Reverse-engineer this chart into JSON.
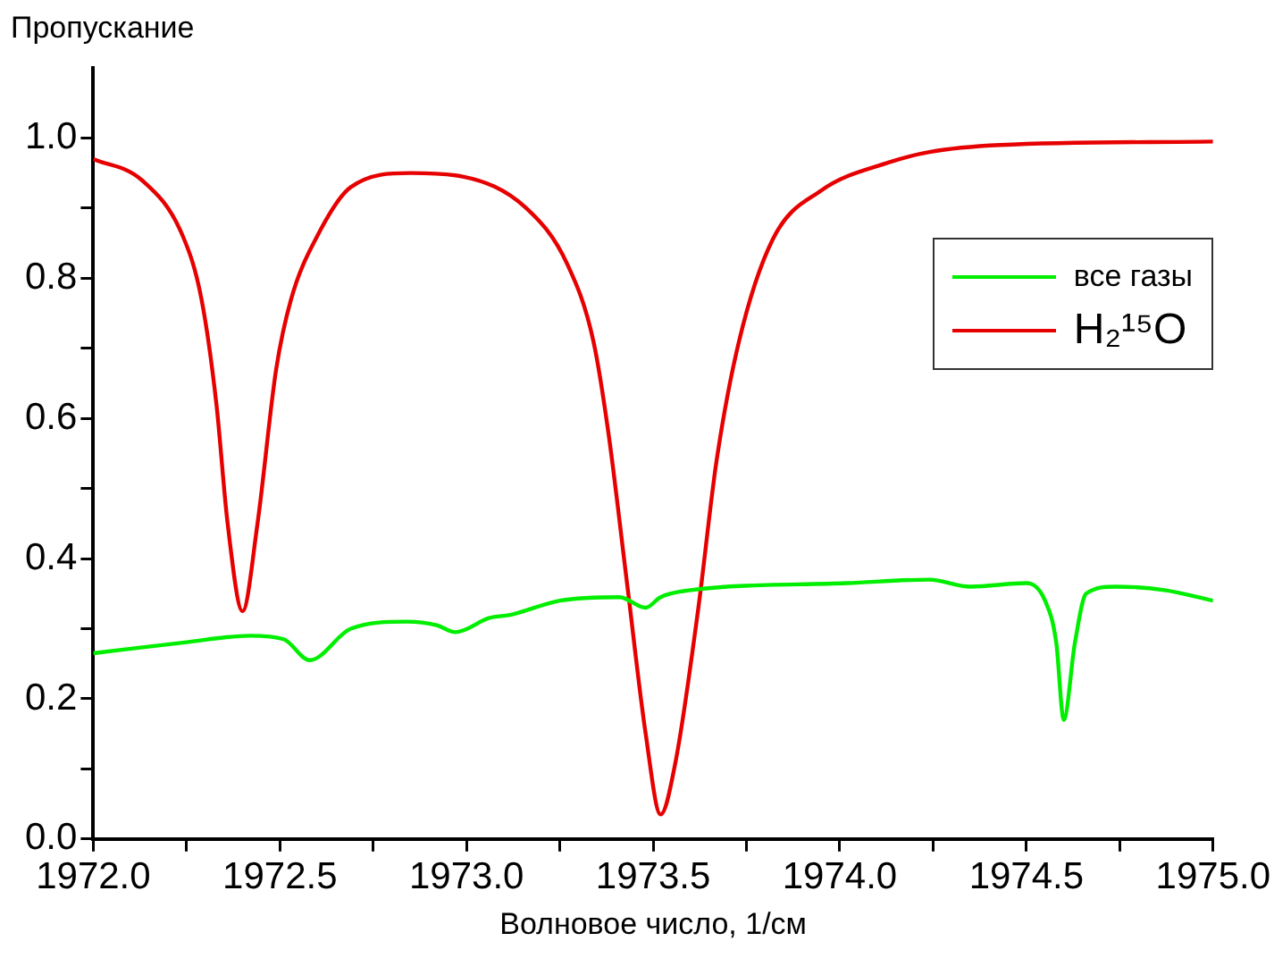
{
  "chart_data": {
    "type": "line",
    "xlabel": "Волновое число, 1/см",
    "ylabel": "Пропускание",
    "legend": "top right",
    "grid": false,
    "marker": "none",
    "line_style": "solid",
    "xlim": [
      1972.0,
      1975.0
    ],
    "ylim": [
      0,
      1.1
    ],
    "xticks": [
      {
        "value": 1972.0,
        "label": "1972.0"
      },
      {
        "value": 1972.25,
        "label": null
      },
      {
        "value": 1972.5,
        "label": "1972.5"
      },
      {
        "value": 1972.75,
        "label": null
      },
      {
        "value": 1973.0,
        "label": "1973.0"
      },
      {
        "value": 1973.25,
        "label": null
      },
      {
        "value": 1973.5,
        "label": "1973.5"
      },
      {
        "value": 1973.75,
        "label": null
      },
      {
        "value": 1974.0,
        "label": "1974.0"
      },
      {
        "value": 1974.25,
        "label": null
      },
      {
        "value": 1974.5,
        "label": "1974.5"
      },
      {
        "value": 1974.75,
        "label": null
      },
      {
        "value": 1975.0,
        "label": "1975.0"
      }
    ],
    "yticks": [
      {
        "value": 0,
        "label": "0.0"
      },
      {
        "value": 0.1,
        "label": null
      },
      {
        "value": 0.2,
        "label": "0.2"
      },
      {
        "value": 0.3,
        "label": null
      },
      {
        "value": 0.4,
        "label": "0.4"
      },
      {
        "value": 0.5,
        "label": null
      },
      {
        "value": 0.6,
        "label": "0.6"
      },
      {
        "value": 0.7,
        "label": null
      },
      {
        "value": 0.8,
        "label": "0.8"
      },
      {
        "value": 0.9,
        "label": null
      },
      {
        "value": 1.0,
        "label": "1.0"
      }
    ],
    "series": [
      {
        "name": "все газы",
        "color": "#00ee00",
        "x": [
          1972.0,
          1972.24,
          1972.42,
          1972.51,
          1972.58,
          1972.69,
          1972.84,
          1972.92,
          1972.97,
          1973.06,
          1973.12,
          1973.25,
          1973.41,
          1973.48,
          1973.52,
          1973.6,
          1974.02,
          1974.24,
          1974.35,
          1974.5,
          1974.55,
          1974.58,
          1974.6,
          1974.63,
          1974.66,
          1974.74,
          1974.87,
          1975.0
        ],
        "values": [
          0.265,
          0.28,
          0.29,
          0.285,
          0.255,
          0.3,
          0.31,
          0.305,
          0.295,
          0.315,
          0.32,
          0.34,
          0.345,
          0.33,
          0.345,
          0.355,
          0.365,
          0.37,
          0.36,
          0.365,
          0.34,
          0.28,
          0.17,
          0.28,
          0.35,
          0.36,
          0.355,
          0.34
        ]
      },
      {
        "name": "H₂¹⁵O",
        "color": "#e60000",
        "x": [
          1972.0,
          1972.13,
          1972.24,
          1972.29,
          1972.33,
          1972.36,
          1972.4,
          1972.44,
          1972.49,
          1972.53,
          1972.6,
          1972.69,
          1972.85,
          1972.99,
          1973.16,
          1973.27,
          1973.34,
          1973.38,
          1973.43,
          1973.48,
          1973.52,
          1973.56,
          1973.62,
          1973.67,
          1973.73,
          1973.82,
          1973.95,
          1974.13,
          1974.24,
          1974.43,
          1975.0
        ],
        "values": [
          0.97,
          0.94,
          0.86,
          0.77,
          0.62,
          0.45,
          0.325,
          0.45,
          0.67,
          0.77,
          0.86,
          0.93,
          0.95,
          0.945,
          0.9,
          0.82,
          0.71,
          0.58,
          0.365,
          0.15,
          0.035,
          0.11,
          0.325,
          0.54,
          0.71,
          0.855,
          0.925,
          0.965,
          0.98,
          0.99,
          0.995
        ]
      }
    ]
  }
}
